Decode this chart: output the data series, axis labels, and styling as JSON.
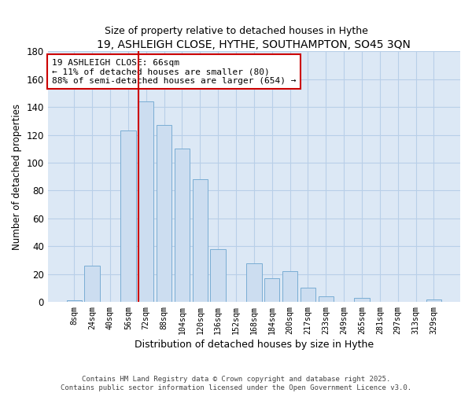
{
  "title": "19, ASHLEIGH CLOSE, HYTHE, SOUTHAMPTON, SO45 3QN",
  "subtitle": "Size of property relative to detached houses in Hythe",
  "xlabel": "Distribution of detached houses by size in Hythe",
  "ylabel": "Number of detached properties",
  "bar_labels": [
    "8sqm",
    "24sqm",
    "40sqm",
    "56sqm",
    "72sqm",
    "88sqm",
    "104sqm",
    "120sqm",
    "136sqm",
    "152sqm",
    "168sqm",
    "184sqm",
    "200sqm",
    "217sqm",
    "233sqm",
    "249sqm",
    "265sqm",
    "281sqm",
    "297sqm",
    "313sqm",
    "329sqm"
  ],
  "bar_values": [
    1,
    26,
    0,
    123,
    144,
    127,
    110,
    88,
    38,
    0,
    28,
    17,
    22,
    10,
    4,
    0,
    3,
    0,
    0,
    0,
    2
  ],
  "bar_color": "#ccddf0",
  "bar_edge_color": "#7aadd4",
  "vline_color": "#cc0000",
  "vline_x_index": 4,
  "annotation_text": "19 ASHLEIGH CLOSE: 66sqm\n← 11% of detached houses are smaller (80)\n88% of semi-detached houses are larger (654) →",
  "annotation_box_facecolor": "#ffffff",
  "annotation_box_edgecolor": "#cc0000",
  "ylim": [
    0,
    180
  ],
  "yticks": [
    0,
    20,
    40,
    60,
    80,
    100,
    120,
    140,
    160,
    180
  ],
  "footer_line1": "Contains HM Land Registry data © Crown copyright and database right 2025.",
  "footer_line2": "Contains public sector information licensed under the Open Government Licence v3.0.",
  "bg_color": "#ffffff",
  "plot_bg_color": "#dce8f5",
  "grid_color": "#b8cfe8",
  "title_fontsize": 10,
  "subtitle_fontsize": 9
}
